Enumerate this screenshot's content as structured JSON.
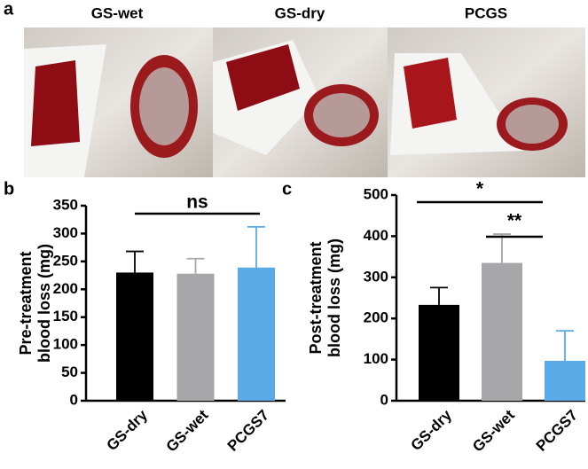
{
  "panel_labels": [
    "a",
    "b",
    "c"
  ],
  "photo_labels": [
    "GS-wet",
    "GS-dry",
    "PCGS"
  ],
  "chart_data": [
    {
      "type": "bar",
      "ylabel": [
        "Pre-treatment",
        "blood loss (mg)"
      ],
      "categories": [
        "GS-dry",
        "GS-wet",
        "PCGS7"
      ],
      "values": [
        230,
        228,
        239
      ],
      "errors": [
        38,
        27,
        73
      ],
      "colors": [
        "#000000",
        "#a6a6a8",
        "#5aaae8"
      ],
      "ylim": [
        0,
        350
      ],
      "yticks": [
        0,
        50,
        100,
        150,
        200,
        250,
        300,
        350
      ],
      "annotations": [
        {
          "text": "ns"
        }
      ]
    },
    {
      "type": "bar",
      "ylabel": [
        "Post-treatment",
        "blood loss (mg)"
      ],
      "categories": [
        "GS-dry",
        "GS-wet",
        "PCGS7"
      ],
      "values": [
        233,
        335,
        97
      ],
      "errors": [
        42,
        70,
        73
      ],
      "colors": [
        "#000000",
        "#a6a6a8",
        "#5aaae8"
      ],
      "ylim": [
        0,
        500
      ],
      "yticks": [
        0,
        100,
        200,
        300,
        400,
        500
      ],
      "annotations": [
        {
          "text": "*"
        },
        {
          "text": "**"
        }
      ]
    }
  ]
}
